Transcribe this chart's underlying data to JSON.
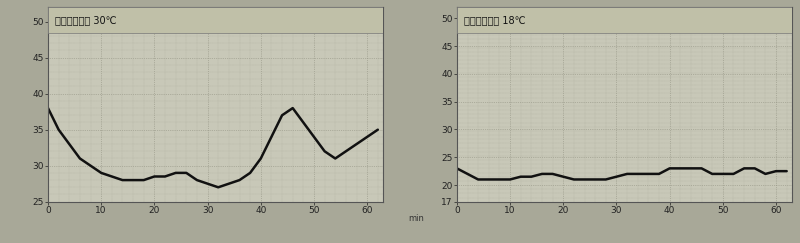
{
  "left_title": "上部送風温度 30℃",
  "right_title": "下部送風温度 18℃",
  "left_ylim": [
    25,
    52
  ],
  "right_ylim": [
    17,
    52
  ],
  "left_yticks": [
    25,
    30,
    35,
    40,
    45,
    50
  ],
  "right_yticks": [
    17,
    20,
    25,
    30,
    35,
    40,
    45,
    50
  ],
  "xticks": [
    0,
    10,
    20,
    30,
    40,
    50,
    60
  ],
  "xlabel": "min",
  "xlim": [
    0,
    63
  ],
  "bg_color": "#c8c8b8",
  "title_bg": "#c0c0a8",
  "grid_color": "#909080",
  "line_color": "#111111",
  "fig_bg": "#a8a898",
  "left_x": [
    0,
    2,
    4,
    6,
    8,
    10,
    12,
    14,
    16,
    18,
    20,
    22,
    24,
    26,
    28,
    30,
    32,
    34,
    36,
    38,
    40,
    42,
    44,
    46,
    48,
    50,
    52,
    54,
    56,
    58,
    60,
    62
  ],
  "left_y": [
    38,
    35,
    33,
    31,
    30,
    29,
    28.5,
    28,
    28,
    28,
    28.5,
    28.5,
    29,
    29,
    28,
    27.5,
    27,
    27.5,
    28,
    29,
    31,
    34,
    37,
    38,
    36,
    34,
    32,
    31,
    32,
    33,
    34,
    35
  ],
  "right_x": [
    0,
    2,
    4,
    6,
    8,
    10,
    12,
    14,
    16,
    18,
    20,
    22,
    24,
    26,
    28,
    30,
    32,
    34,
    36,
    38,
    40,
    42,
    44,
    46,
    48,
    50,
    52,
    54,
    56,
    58,
    60,
    62
  ],
  "right_y": [
    23,
    22,
    21,
    21,
    21,
    21,
    21.5,
    21.5,
    22,
    22,
    21.5,
    21,
    21,
    21,
    21,
    21.5,
    22,
    22,
    22,
    22,
    23,
    23,
    23,
    23,
    22,
    22,
    22,
    23,
    23,
    22,
    22.5,
    22.5
  ]
}
